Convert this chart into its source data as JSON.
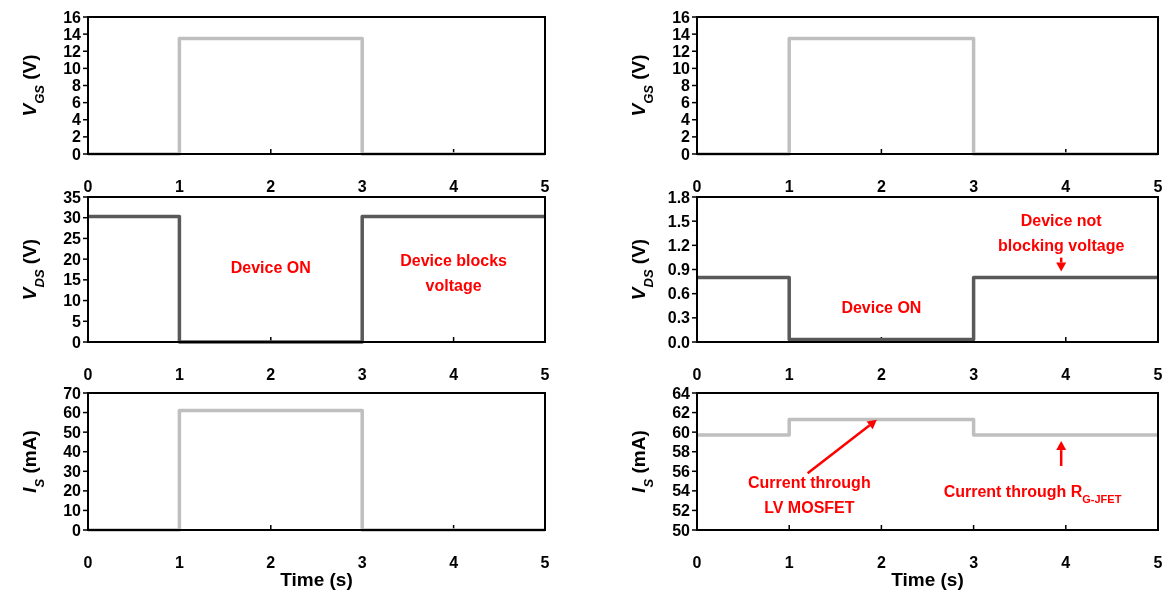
{
  "chart_data": [
    {
      "type": "line",
      "x": [
        0,
        1,
        1,
        3,
        3,
        5
      ],
      "series": [
        {
          "color": "#bfbfbf",
          "values": [
            0,
            0,
            13.5,
            13.5,
            0,
            0
          ]
        }
      ],
      "xlim": [
        0,
        5
      ],
      "xticks": [
        0,
        1,
        2,
        3,
        4,
        5
      ],
      "ylim": [
        0,
        16
      ],
      "yticks": [
        0,
        2,
        4,
        6,
        8,
        10,
        12,
        14,
        16
      ],
      "ylabel": "V$_{GS}$ (V)"
    },
    {
      "type": "line",
      "x": [
        0,
        1,
        1,
        3,
        3,
        5
      ],
      "series": [
        {
          "color": "#bfbfbf",
          "values": [
            0,
            0,
            13.5,
            13.5,
            0,
            0
          ]
        }
      ],
      "xlim": [
        0,
        5
      ],
      "xticks": [
        0,
        1,
        2,
        3,
        4,
        5
      ],
      "ylim": [
        0,
        16
      ],
      "yticks": [
        0,
        2,
        4,
        6,
        8,
        10,
        12,
        14,
        16
      ],
      "ylabel": "V$_{GS}$ (V)"
    },
    {
      "type": "line",
      "x": [
        0,
        1,
        1,
        3,
        3,
        5
      ],
      "series": [
        {
          "color": "#595959",
          "values": [
            30.3,
            30.3,
            0,
            0,
            30.3,
            30.3
          ]
        }
      ],
      "xlim": [
        0,
        5
      ],
      "xticks": [
        0,
        1,
        2,
        3,
        4,
        5
      ],
      "ylim": [
        0,
        35
      ],
      "yticks": [
        0,
        5,
        10,
        15,
        20,
        25,
        30,
        35
      ],
      "ylabel": "V$_{DS}$  (V)",
      "annotations": [
        "Device ON",
        "Device blocks\nvoltage"
      ]
    },
    {
      "type": "line",
      "x": [
        0,
        1,
        1,
        3,
        3,
        5
      ],
      "series": [
        {
          "color": "#595959",
          "values": [
            0.8,
            0.8,
            0.03,
            0.03,
            0.8,
            0.8
          ]
        }
      ],
      "xlim": [
        0,
        5
      ],
      "xticks": [
        0,
        1,
        2,
        3,
        4,
        5
      ],
      "ylim": [
        0,
        1.8
      ],
      "yticks": [
        {
          "value": 0,
          "label": "0.0"
        },
        0.3,
        0.6,
        0.9,
        1.2,
        1.5,
        1.8
      ],
      "ylabel": "V$_{DS}$  (V)",
      "annotations": [
        "Device ON",
        "Device not\nblocking voltage"
      ]
    },
    {
      "type": "line",
      "x": [
        0,
        1,
        1,
        3,
        3,
        5
      ],
      "series": [
        {
          "color": "#bfbfbf",
          "values": [
            0,
            0,
            61,
            61,
            0,
            0
          ]
        }
      ],
      "xlim": [
        0,
        5
      ],
      "xticks": [
        0,
        1,
        2,
        3,
        4,
        5
      ],
      "ylim": [
        0,
        70
      ],
      "yticks": [
        0,
        10,
        20,
        30,
        40,
        50,
        60,
        70
      ],
      "ylabel": "I$_{S}$  (mA)",
      "xlabel": "Time (s)"
    },
    {
      "type": "line",
      "x": [
        0,
        1,
        1,
        3,
        3,
        5
      ],
      "series": [
        {
          "color": "#bfbfbf",
          "values": [
            59.7,
            59.7,
            61.3,
            61.3,
            59.7,
            59.7
          ]
        }
      ],
      "xlim": [
        0,
        5
      ],
      "xticks": [
        0,
        1,
        2,
        3,
        4,
        5
      ],
      "ylim": [
        50,
        64
      ],
      "yticks": [
        50,
        52,
        54,
        56,
        58,
        60,
        62,
        64
      ],
      "ylabel": "I$_{S}$  (mA)",
      "xlabel": "Time (s)",
      "annotations": [
        "Current through\nLV MOSFET",
        "Current through R$_{G-JFET}$"
      ]
    }
  ]
}
